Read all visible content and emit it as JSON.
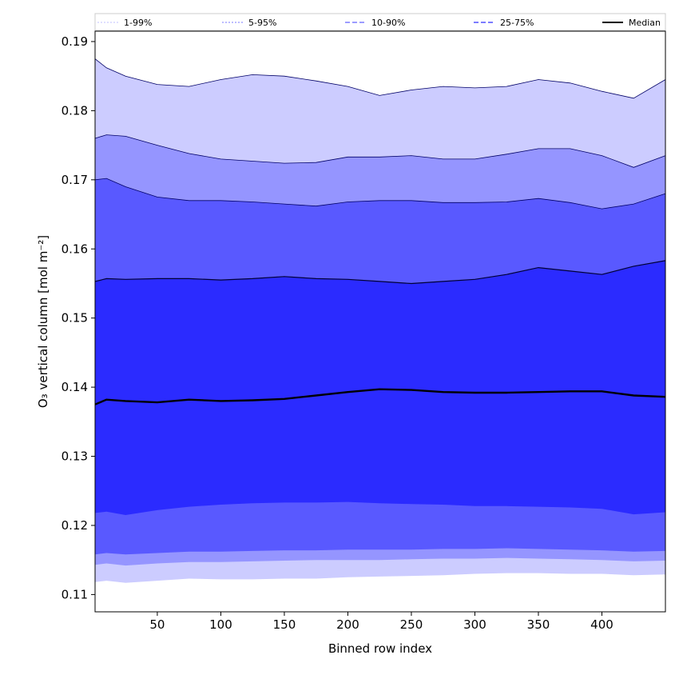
{
  "chart_data": {
    "type": "area",
    "title": "",
    "xlabel": "Binned row index",
    "ylabel": "O₃ vertical column [mol m⁻²]",
    "xlim": [
      1,
      450
    ],
    "ylim": [
      0.1075,
      0.1915
    ],
    "xticks": [
      50,
      100,
      150,
      200,
      250,
      300,
      350,
      400
    ],
    "yticks": [
      0.11,
      0.12,
      0.13,
      0.14,
      0.15,
      0.16,
      0.17,
      0.18,
      0.19
    ],
    "grid": false,
    "legend": {
      "placement": "top",
      "entries": [
        {
          "label": "1-99%",
          "color": "#ccccff",
          "style": "dotted"
        },
        {
          "label": "5-95%",
          "color": "#9595ff",
          "style": "dotted"
        },
        {
          "label": "10-90%",
          "color": "#6262ff",
          "style": "dashed"
        },
        {
          "label": "25-75%",
          "color": "#2e2eff",
          "style": "dashed"
        },
        {
          "label": "Median",
          "color": "#000000",
          "style": "solid"
        }
      ]
    },
    "x": [
      1,
      10,
      25,
      50,
      75,
      100,
      125,
      150,
      175,
      200,
      225,
      250,
      275,
      300,
      325,
      350,
      375,
      400,
      425,
      450
    ],
    "bands": [
      {
        "name": "1-99%",
        "color": "#ccccff",
        "lower": [
          0.1118,
          0.112,
          0.1117,
          0.112,
          0.1123,
          0.1122,
          0.1122,
          0.1123,
          0.1123,
          0.1125,
          0.1126,
          0.1127,
          0.1128,
          0.113,
          0.1131,
          0.1131,
          0.113,
          0.113,
          0.1128,
          0.1129
        ],
        "upper": [
          0.1875,
          0.1862,
          0.185,
          0.1838,
          0.1835,
          0.1845,
          0.1852,
          0.185,
          0.1843,
          0.1835,
          0.1822,
          0.183,
          0.1835,
          0.1833,
          0.1835,
          0.1845,
          0.184,
          0.1828,
          0.1818,
          0.1845
        ]
      },
      {
        "name": "5-95%",
        "color": "#9595ff",
        "lower": [
          0.1143,
          0.1145,
          0.1142,
          0.1145,
          0.1147,
          0.1147,
          0.1148,
          0.1149,
          0.115,
          0.115,
          0.115,
          0.1151,
          0.1152,
          0.1152,
          0.1153,
          0.1152,
          0.1151,
          0.115,
          0.1148,
          0.1149
        ],
        "upper": [
          0.176,
          0.1765,
          0.1763,
          0.175,
          0.1738,
          0.173,
          0.1727,
          0.1724,
          0.1725,
          0.1733,
          0.1733,
          0.1735,
          0.173,
          0.173,
          0.1737,
          0.1745,
          0.1745,
          0.1735,
          0.1718,
          0.1735
        ]
      },
      {
        "name": "10-90%",
        "color": "#5959ff",
        "lower": [
          0.1158,
          0.116,
          0.1158,
          0.116,
          0.1162,
          0.1162,
          0.1163,
          0.1164,
          0.1164,
          0.1165,
          0.1165,
          0.1165,
          0.1166,
          0.1166,
          0.1167,
          0.1166,
          0.1165,
          0.1164,
          0.1162,
          0.1163
        ],
        "upper": [
          0.17,
          0.1702,
          0.169,
          0.1675,
          0.167,
          0.167,
          0.1668,
          0.1665,
          0.1662,
          0.1668,
          0.167,
          0.167,
          0.1667,
          0.1667,
          0.1668,
          0.1673,
          0.1667,
          0.1658,
          0.1665,
          0.168
        ]
      },
      {
        "name": "25-75%",
        "color": "#2b2bff",
        "lower": [
          0.1218,
          0.122,
          0.1215,
          0.1222,
          0.1227,
          0.123,
          0.1232,
          0.1233,
          0.1233,
          0.1234,
          0.1232,
          0.1231,
          0.123,
          0.1228,
          0.1228,
          0.1227,
          0.1226,
          0.1224,
          0.1216,
          0.1219
        ]
      }
    ],
    "series": [
      {
        "name": "25-75%",
        "color": "#2b2bff",
        "values": [
          0.1553,
          0.1557,
          0.1556,
          0.1557,
          0.1557,
          0.1555,
          0.1557,
          0.156,
          0.1557,
          0.1556,
          0.1553,
          0.155,
          0.1553,
          0.1556,
          0.1563,
          0.1573,
          0.1568,
          0.1563,
          0.1575,
          0.1583
        ]
      },
      {
        "name": "Median",
        "color": "#000000",
        "values": [
          0.1375,
          0.1382,
          0.138,
          0.1378,
          0.1382,
          0.138,
          0.1381,
          0.1383,
          0.1388,
          0.1393,
          0.1397,
          0.1396,
          0.1393,
          0.1392,
          0.1392,
          0.1393,
          0.1394,
          0.1394,
          0.1388,
          0.1386
        ]
      }
    ]
  }
}
